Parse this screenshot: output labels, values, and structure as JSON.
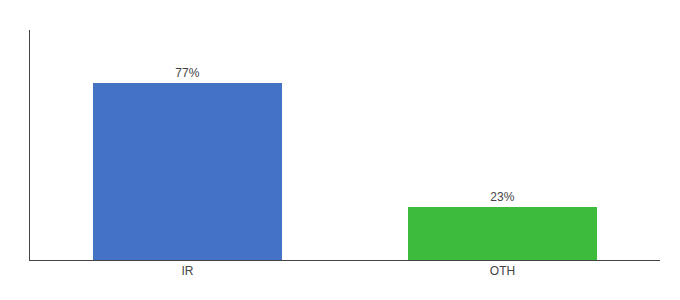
{
  "chart_data": {
    "type": "bar",
    "categories": [
      "IR",
      "OTH"
    ],
    "values": [
      77,
      23
    ],
    "value_labels": [
      "77%",
      "23%"
    ],
    "data_labels": true,
    "colors": [
      "#4472c4",
      "#3dbb3d"
    ],
    "ylim": [
      0,
      100
    ],
    "yticks": [],
    "grid": false,
    "tick_labels": "x"
  }
}
